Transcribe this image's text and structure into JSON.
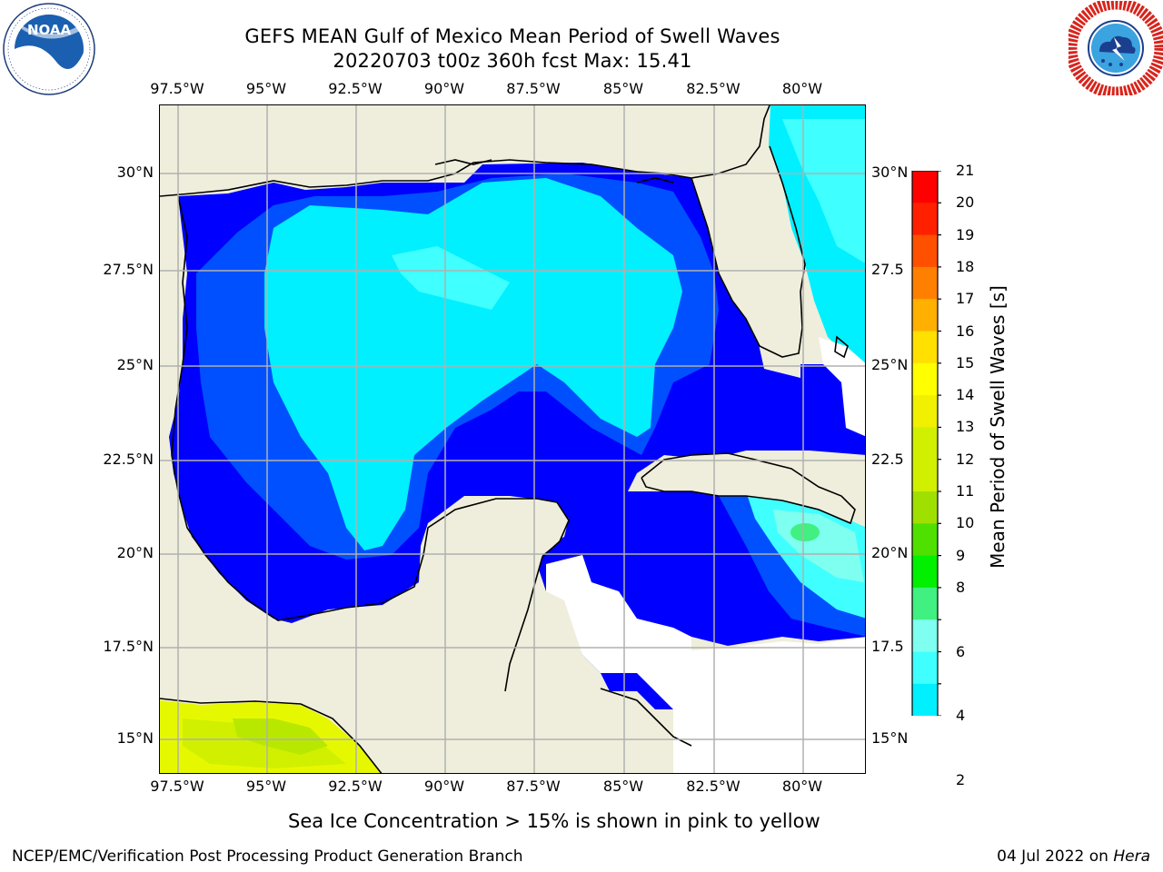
{
  "header": {
    "title_line1": "GEFS MEAN Gulf of Mexico Mean Period of Swell Waves",
    "title_line2": "20220703 t00z 360h fcst   Max: 15.41"
  },
  "logos": {
    "left": {
      "name": "NOAA",
      "ring_text": "NATIONAL OCEANIC AND ATMOSPHERIC ADMINISTRATION · U.S. DEPARTMENT OF COMMERCE"
    },
    "right": {
      "name": "NATIONAL WEATHER SERVICE"
    }
  },
  "map": {
    "lon_labels": [
      "97.5°W",
      "95°W",
      "92.5°W",
      "90°W",
      "87.5°W",
      "85°W",
      "82.5°W",
      "80°W"
    ],
    "lat_labels_left": [
      "30°N",
      "27.5°N",
      "25°N",
      "22.5°N",
      "20°N",
      "17.5°N",
      "15°N"
    ],
    "lat_labels_right": [
      "30°N",
      "27.5",
      "25°N",
      "22.5",
      "20°N",
      "17.5",
      "15°N"
    ],
    "land_color": "#efeedc",
    "grid_color": "#b0b0b0",
    "coast_color": "#000000"
  },
  "colorbar": {
    "label": "Mean Period of Swell Waves [s]",
    "ticks": [
      "21",
      "20",
      "19",
      "18",
      "17",
      "16",
      "15",
      "14",
      "13",
      "12",
      "11",
      "10",
      "9",
      "8",
      "7",
      "6",
      "5",
      "4",
      "3",
      "2"
    ],
    "tick_labels": [
      "21",
      "20",
      "19",
      "18",
      "17",
      "16",
      "15",
      "14",
      "13",
      "12",
      "11",
      "10",
      "9",
      "8",
      "6",
      "4",
      "2"
    ],
    "colors": [
      "#0000ff",
      "#0050ff",
      "#00f0ff",
      "#40ffff",
      "#7ffff0",
      "#40f080",
      "#00f000",
      "#50e000",
      "#a0e000",
      "#d0f000",
      "#f0f000",
      "#ffff00",
      "#ffe000",
      "#ffb000",
      "#ff8000",
      "#ff5000",
      "#ff2000",
      "#ff0000"
    ]
  },
  "caption": "Sea Ice Concentration > 15% is shown in pink to yellow",
  "footer": {
    "left": "NCEP/EMC/Verification Post Processing Product Generation Branch",
    "right_prefix": "04 Jul 2022 on ",
    "right_host": "Hera"
  }
}
